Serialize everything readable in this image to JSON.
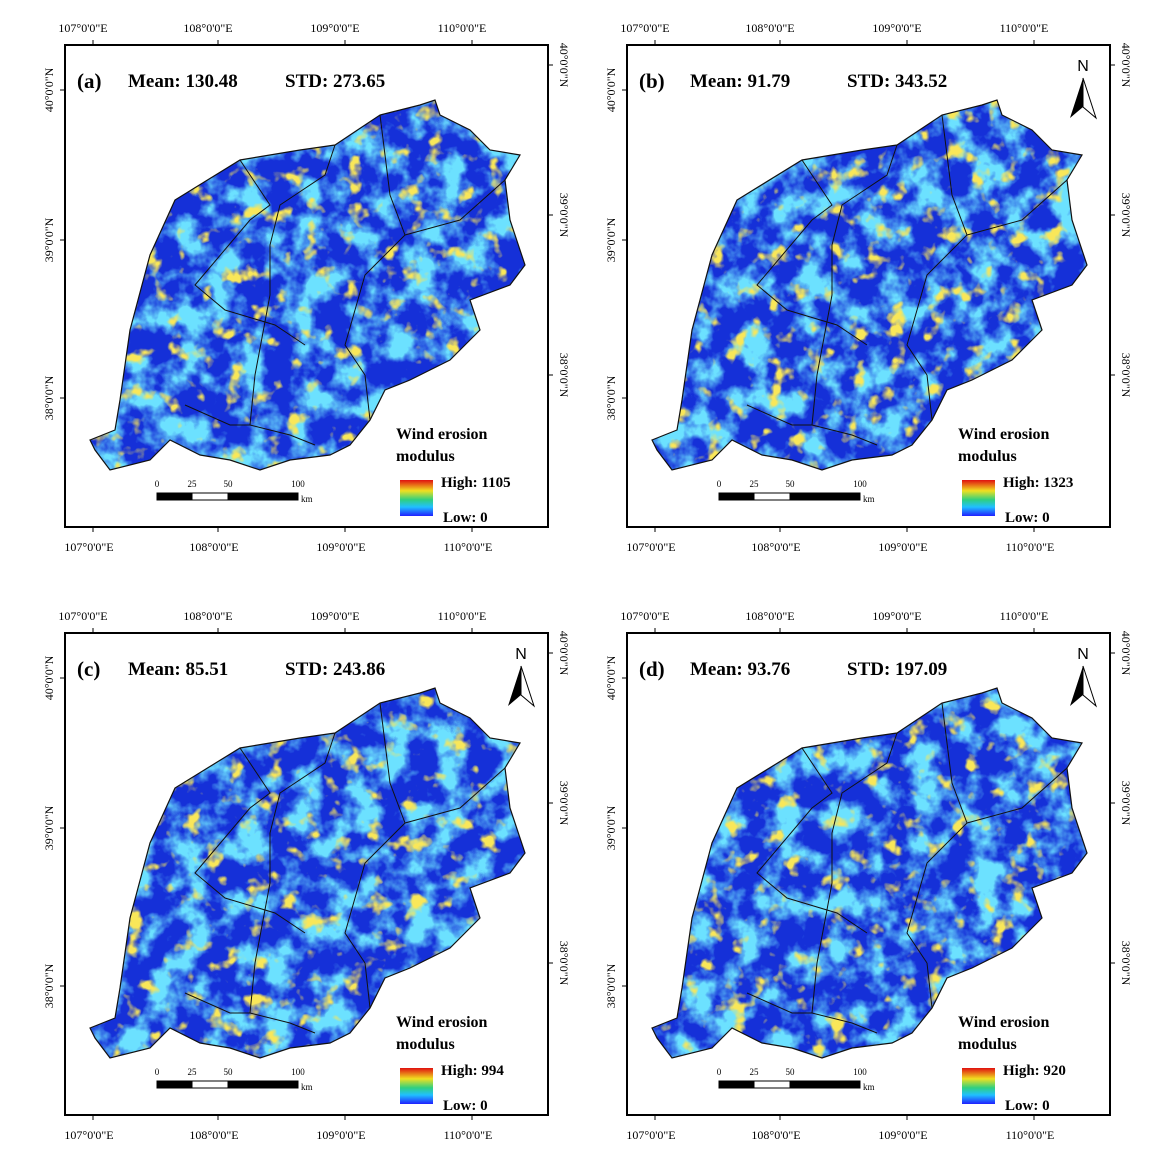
{
  "axes": {
    "lon_labels": [
      "107°0'0\"E",
      "108°0'0\"E",
      "109°0'0\"E",
      "110°0'0\"E"
    ],
    "lat_labels": [
      "40°0'0\"N",
      "39°0'0\"N",
      "38°0'0\"N"
    ]
  },
  "legend_title": [
    "Wind erosion",
    "modulus"
  ],
  "scale_bar": {
    "ticks": [
      "0",
      "25",
      "50",
      "100"
    ],
    "unit": "km"
  },
  "north_label": "N",
  "panels": [
    {
      "label": "(a)",
      "mean": "Mean: 130.48",
      "std": "STD: 273.65",
      "high": "High: 1105",
      "low": "Low: 0",
      "north_arrow": false
    },
    {
      "label": "(b)",
      "mean": "Mean: 91.79",
      "std": "STD: 343.52",
      "high": "High: 1323",
      "low": "Low: 0",
      "north_arrow": true
    },
    {
      "label": "(c)",
      "mean": "Mean: 85.51",
      "std": "STD: 243.86",
      "high": "High: 994",
      "low": "Low: 0",
      "north_arrow": true
    },
    {
      "label": "(d)",
      "mean": "Mean: 93.76",
      "std": "STD: 197.09",
      "high": "High: 920",
      "low": "Low: 0",
      "north_arrow": true
    }
  ]
}
